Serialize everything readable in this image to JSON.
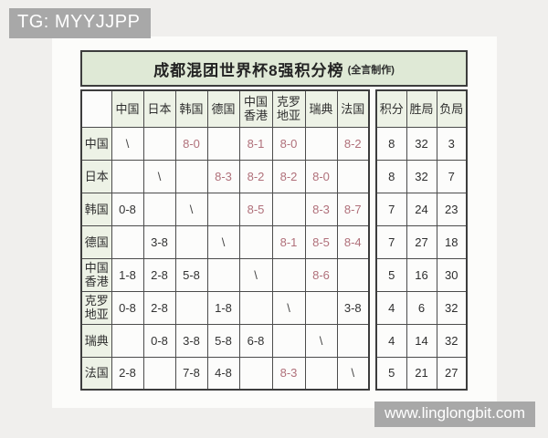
{
  "badges": {
    "top_left": "TG: MYYJJPP",
    "bottom_right": "www.linglongbit.com"
  },
  "table": {
    "title": "成都混团世界杯8强积分榜",
    "title_suffix": "(全言制作)",
    "corner_label": "",
    "opponent_columns": [
      "中国",
      "日本",
      "韩国",
      "德国",
      "中国\n香港",
      "克罗\n地亚",
      "瑞典",
      "法国"
    ],
    "stat_columns": [
      "积分",
      "胜局",
      "负局"
    ],
    "rows": [
      {
        "team": "中国",
        "cells": [
          "\\",
          "",
          "8-0",
          "",
          "8-1",
          "8-0",
          "",
          "8-2"
        ],
        "stats": [
          8,
          32,
          3
        ]
      },
      {
        "team": "日本",
        "cells": [
          "",
          "\\",
          "",
          "8-3",
          "8-2",
          "8-2",
          "8-0",
          ""
        ],
        "stats": [
          8,
          32,
          7
        ]
      },
      {
        "team": "韩国",
        "cells": [
          "0-8",
          "",
          "\\",
          "",
          "8-5",
          "",
          "8-3",
          "8-7"
        ],
        "stats": [
          7,
          24,
          23
        ]
      },
      {
        "team": "德国",
        "cells": [
          "",
          "3-8",
          "",
          "\\",
          "",
          "8-1",
          "8-5",
          "8-4"
        ],
        "stats": [
          7,
          27,
          18
        ]
      },
      {
        "team": "中国\n香港",
        "cells": [
          "1-8",
          "2-8",
          "5-8",
          "",
          "\\",
          "",
          "8-6",
          ""
        ],
        "stats": [
          5,
          16,
          30
        ]
      },
      {
        "team": "克罗\n地亚",
        "cells": [
          "0-8",
          "2-8",
          "",
          "1-8",
          "",
          "\\",
          "",
          "3-8"
        ],
        "stats": [
          4,
          6,
          32
        ]
      },
      {
        "team": "瑞典",
        "cells": [
          "",
          "0-8",
          "3-8",
          "5-8",
          "6-8",
          "",
          "\\",
          ""
        ],
        "stats": [
          4,
          14,
          32
        ]
      },
      {
        "team": "法国",
        "cells": [
          "2-8",
          "",
          "7-8",
          "4-8",
          "",
          "8-3",
          "",
          "\\"
        ],
        "stats": [
          5,
          21,
          27
        ]
      }
    ]
  },
  "chart_data": {
    "type": "table",
    "title": "成都混团世界杯8强积分榜 (全言制作)",
    "columns": [
      "",
      "中国",
      "日本",
      "韩国",
      "德国",
      "中国香港",
      "克罗地亚",
      "瑞典",
      "法国",
      "积分",
      "胜局",
      "负局"
    ],
    "rows": [
      [
        "中国",
        "\\",
        "",
        "8-0",
        "",
        "8-1",
        "8-0",
        "",
        "8-2",
        8,
        32,
        3
      ],
      [
        "日本",
        "",
        "\\",
        "",
        "8-3",
        "8-2",
        "8-2",
        "8-0",
        "",
        8,
        32,
        7
      ],
      [
        "韩国",
        "0-8",
        "",
        "\\",
        "",
        "8-5",
        "",
        "8-3",
        "8-7",
        7,
        24,
        23
      ],
      [
        "德国",
        "",
        "3-8",
        "",
        "\\",
        "",
        "8-1",
        "8-5",
        "8-4",
        7,
        27,
        18
      ],
      [
        "中国香港",
        "1-8",
        "2-8",
        "5-8",
        "",
        "\\",
        "",
        "8-6",
        "",
        5,
        16,
        30
      ],
      [
        "克罗地亚",
        "0-8",
        "2-8",
        "",
        "1-8",
        "",
        "\\",
        "",
        "3-8",
        4,
        6,
        32
      ],
      [
        "瑞典",
        "",
        "0-8",
        "3-8",
        "5-8",
        "6-8",
        "",
        "\\",
        "",
        4,
        14,
        32
      ],
      [
        "法国",
        "2-8",
        "",
        "7-8",
        "4-8",
        "",
        "8-3",
        "",
        "\\",
        5,
        21,
        27
      ]
    ],
    "legend": "red score = win (8-x), dark score = loss (x-8), \\ = self",
    "colors": {
      "win_red": "#b0707a",
      "header_green": "#edf2e6",
      "title_green": "#dfe9d6",
      "badge_gray": "#a8a8a8"
    }
  }
}
